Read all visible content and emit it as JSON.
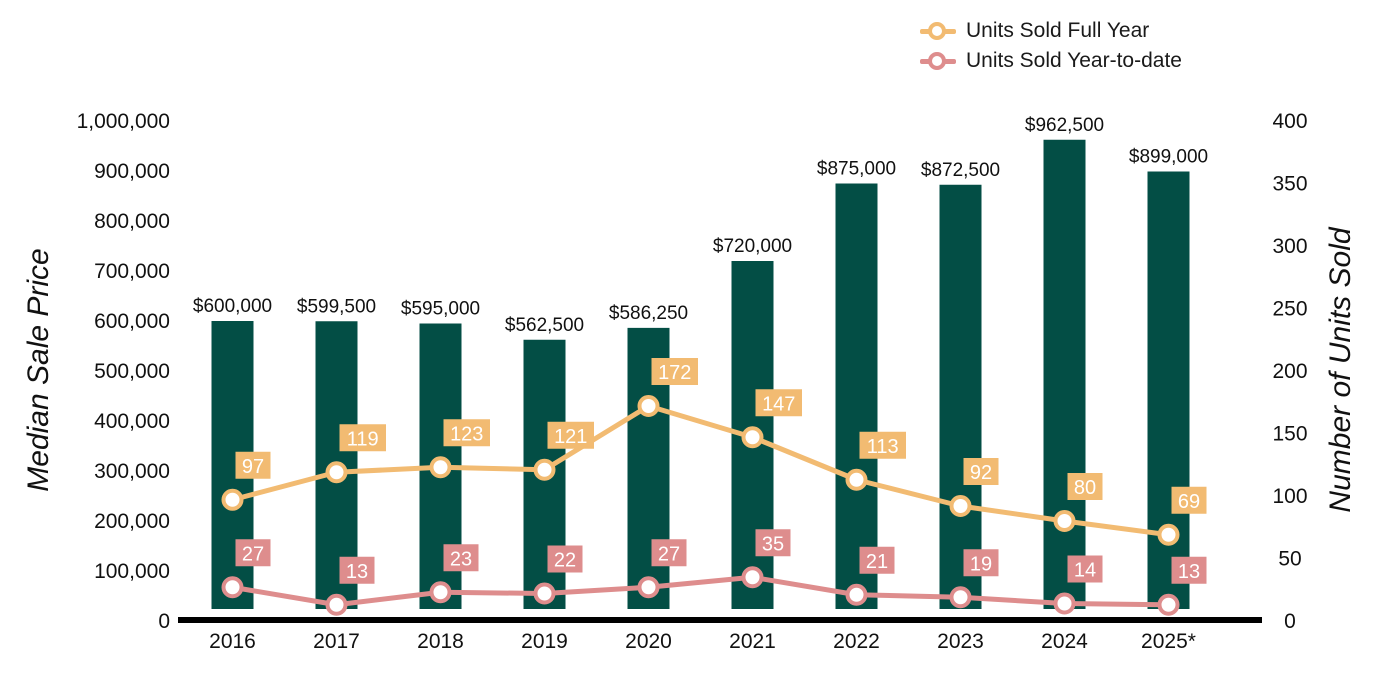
{
  "chart_data": {
    "type": "bar",
    "categories": [
      "2016",
      "2017",
      "2018",
      "2019",
      "2020",
      "2021",
      "2022",
      "2023",
      "2024",
      "2025*"
    ],
    "bars": {
      "name": "Median Sale Price",
      "values": [
        600000,
        599500,
        595000,
        562500,
        586250,
        720000,
        875000,
        872500,
        962500,
        899000
      ],
      "labels": [
        "$600,000",
        "$599,500",
        "$595,000",
        "$562,500",
        "$586,250",
        "$720,000",
        "$875,000",
        "$872,500",
        "$962,500",
        "$899,000"
      ],
      "color": "#034e45"
    },
    "series": [
      {
        "name": "Units Sold Full Year",
        "type": "line",
        "axis": "right",
        "values": [
          97,
          119,
          123,
          121,
          172,
          147,
          113,
          92,
          80,
          69
        ],
        "color": "#f2bb72"
      },
      {
        "name": "Units Sold Year-to-date",
        "type": "line",
        "axis": "right",
        "values": [
          27,
          13,
          23,
          22,
          27,
          35,
          21,
          19,
          14,
          13
        ],
        "color": "#de8d8d"
      }
    ],
    "ylabel": "Median Sale Price",
    "y2label": "Number of Units Sold",
    "ylim": [
      0,
      1000000
    ],
    "y2lim": [
      0,
      400
    ],
    "yticks": [
      "0",
      "100,000",
      "200,000",
      "300,000",
      "400,000",
      "500,000",
      "600,000",
      "700,000",
      "800,000",
      "900,000",
      "1,000,000"
    ],
    "y2ticks": [
      "0",
      "50",
      "100",
      "150",
      "200",
      "250",
      "300",
      "350",
      "400"
    ],
    "grid": false,
    "legend": "top-right"
  }
}
